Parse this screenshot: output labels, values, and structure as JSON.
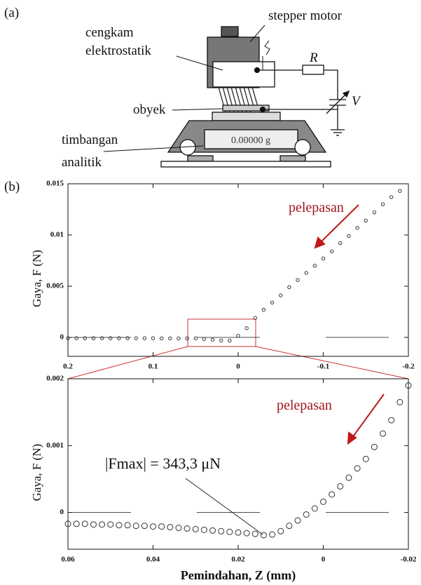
{
  "diagram": {
    "panel_a": "(a)",
    "panel_b": "(b)",
    "stepper_motor": "stepper motor",
    "clamp_line1": "cengkam",
    "clamp_line2": "elektrostatik",
    "resistor": "R",
    "voltage": "V",
    "object": "obyek",
    "balance_line1": "timbangan",
    "balance_line2": "analitik",
    "display": "0.00000 g"
  },
  "chart_data": [
    {
      "type": "scatter",
      "y_label": "Gaya, F (N)",
      "annotations": [
        "pelepasan"
      ],
      "xlim": [
        0.2,
        -0.2
      ],
      "xticks": [
        0.2,
        0.1,
        0,
        -0.1,
        -0.2
      ],
      "ylim": [
        -0.00185,
        0.015
      ],
      "yticks": [
        0,
        0.005,
        0.01,
        0.015
      ],
      "zero_line": true,
      "series": [
        {
          "color": "#333333",
          "x": [
            0.2,
            0.19,
            0.18,
            0.17,
            0.16,
            0.15,
            0.14,
            0.13,
            0.12,
            0.11,
            0.1,
            0.09,
            0.08,
            0.07,
            0.06,
            0.05,
            0.04,
            0.03,
            0.02,
            0.01,
            0,
            -0.01,
            -0.02,
            -0.03,
            -0.04,
            -0.05,
            -0.06,
            -0.07,
            -0.08,
            -0.09,
            -0.1,
            -0.11,
            -0.12,
            -0.13,
            -0.14,
            -0.15,
            -0.16,
            -0.17,
            -0.18,
            -0.19
          ],
          "values": [
            -8e-05,
            -8e-05,
            -8e-05,
            -8e-05,
            -8e-05,
            -8e-05,
            -8e-05,
            -8e-05,
            -8e-05,
            -8e-05,
            -8e-05,
            -0.0001,
            -0.0001,
            -0.0001,
            -0.0001,
            -0.0001,
            -0.00015,
            -0.00022,
            -0.0003,
            -0.00032,
            0.00015,
            0.0009,
            0.0019,
            0.0027,
            0.0034,
            0.0041,
            0.0049,
            0.0056,
            0.0063,
            0.007,
            0.0077,
            0.0084,
            0.0092,
            0.0099,
            0.0107,
            0.0114,
            0.0122,
            0.013,
            0.0137,
            0.0143
          ]
        }
      ]
    },
    {
      "type": "scatter",
      "y_label": "Gaya, F (N)",
      "x_label": "Pemindahan, Z (mm)",
      "annotations": [
        "pelepasan",
        "|Fmax| = 343,3 μN"
      ],
      "xlim": [
        0.06,
        -0.02
      ],
      "xticks": [
        0.06,
        0.04,
        0.02,
        0,
        -0.02
      ],
      "ylim": [
        -0.00055,
        0.002
      ],
      "yticks": [
        0,
        0.001,
        0.002
      ],
      "zero_line": true,
      "series": [
        {
          "color": "#333333",
          "x": [
            0.06,
            0.058,
            0.056,
            0.054,
            0.052,
            0.05,
            0.048,
            0.046,
            0.044,
            0.042,
            0.04,
            0.038,
            0.036,
            0.034,
            0.032,
            0.03,
            0.028,
            0.026,
            0.024,
            0.022,
            0.02,
            0.018,
            0.016,
            0.014,
            0.012,
            0.01,
            0.008,
            0.006,
            0.004,
            0.002,
            0,
            -0.002,
            -0.004,
            -0.006,
            -0.008,
            -0.01,
            -0.012,
            -0.014,
            -0.016,
            -0.018,
            -0.02
          ],
          "values": [
            -0.00017,
            -0.00017,
            -0.00017,
            -0.00018,
            -0.00018,
            -0.00018,
            -0.00019,
            -0.00019,
            -0.0002,
            -0.0002,
            -0.00021,
            -0.00021,
            -0.00022,
            -0.00023,
            -0.00024,
            -0.00025,
            -0.00026,
            -0.00027,
            -0.00028,
            -0.00029,
            -0.0003,
            -0.00031,
            -0.00032,
            -0.00034,
            -0.00033,
            -0.00028,
            -0.0002,
            -0.00012,
            -3e-05,
            6e-05,
            0.00016,
            0.00027,
            0.00039,
            0.00052,
            0.00066,
            0.0008,
            0.00098,
            0.00118,
            0.00138,
            0.00165,
            0.0019
          ]
        }
      ]
    }
  ]
}
